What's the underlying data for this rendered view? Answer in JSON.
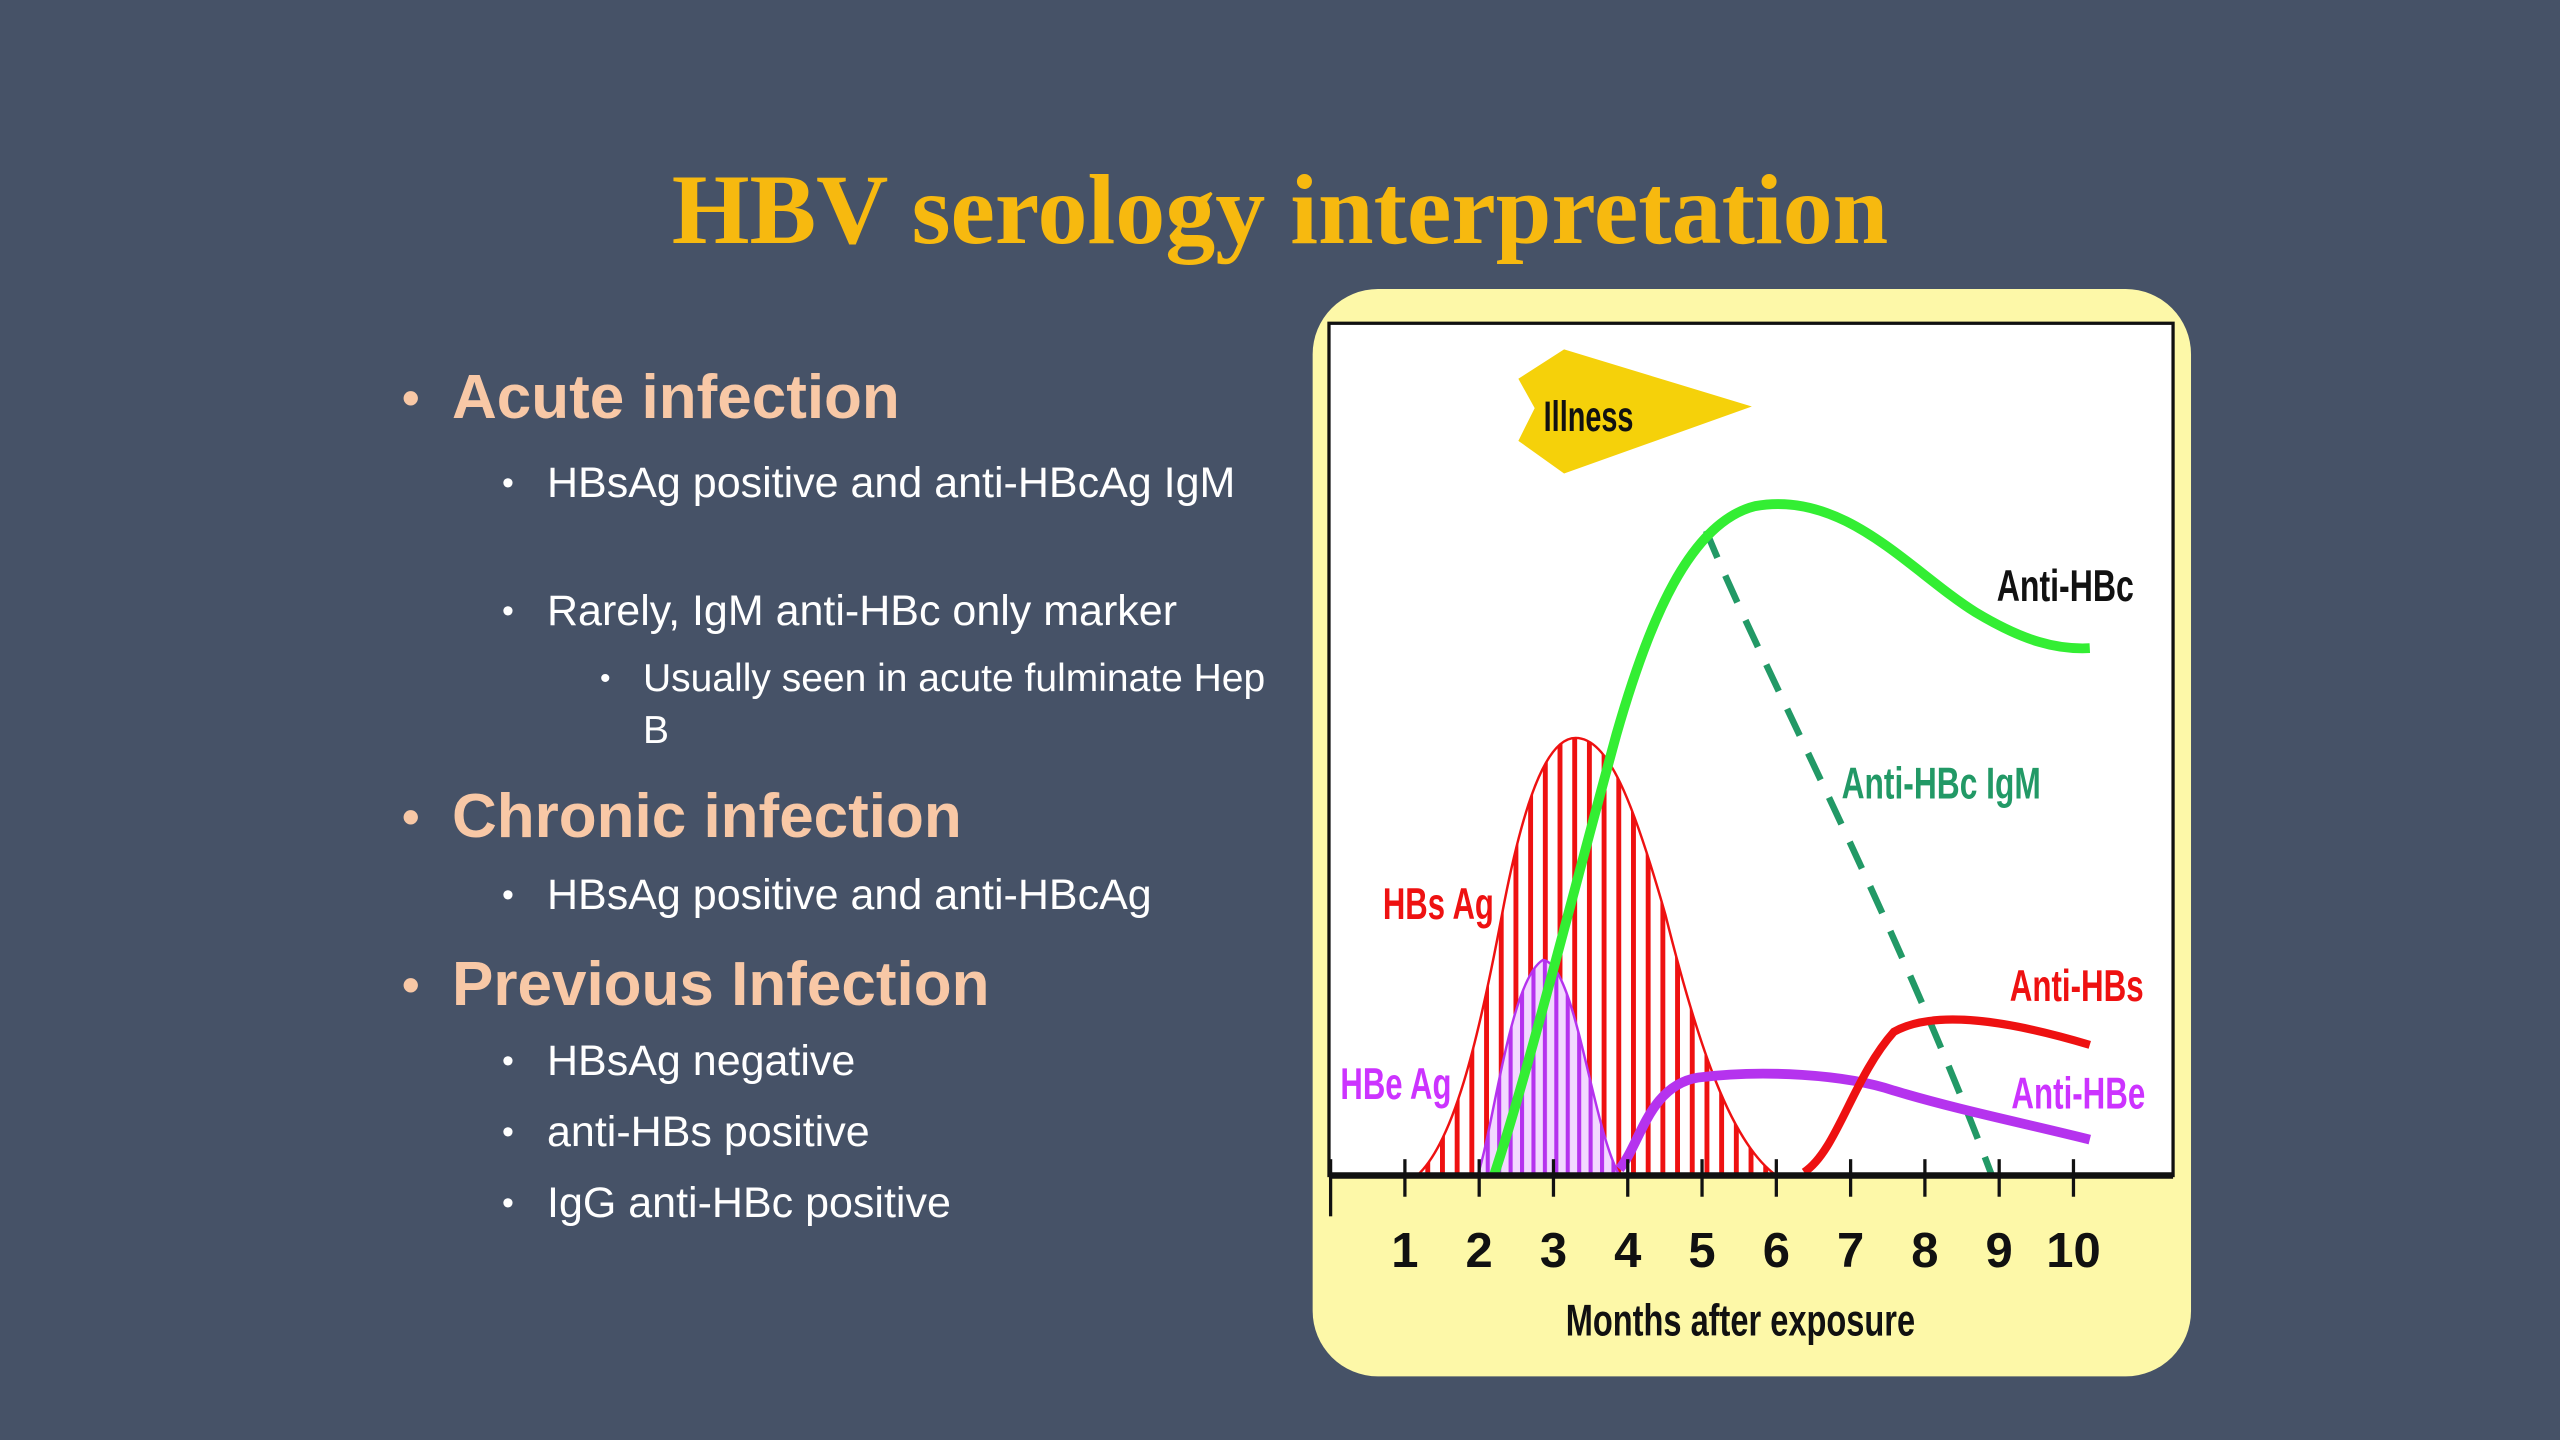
{
  "title": "HBV serology interpretation",
  "sections": [
    {
      "heading": "Acute infection",
      "items": [
        {
          "text": "HBsAg positive and anti-HBcAg IgM",
          "subitems": []
        },
        {
          "text": "Rarely, IgM anti-HBc only marker",
          "subitems": [
            "Usually seen in acute fulminate Hep B"
          ]
        }
      ]
    },
    {
      "heading": "Chronic infection",
      "items": [
        {
          "text": "HBsAg positive and anti-HBcAg",
          "subitems": []
        }
      ]
    },
    {
      "heading": "Previous Infection",
      "items": [
        {
          "text": "HBsAg negative",
          "subitems": []
        },
        {
          "text": "anti-HBs positive",
          "subitems": []
        },
        {
          "text": "IgG anti-HBc positive",
          "subitems": []
        }
      ]
    }
  ],
  "figure": {
    "illness": "Illness",
    "labels": {
      "anti_hbc": "Anti-HBc",
      "anti_hbc_igm": "Anti-HBc IgM",
      "hbs_ag": "HBs Ag",
      "anti_hbs": "Anti-HBs",
      "hbe_ag": "HBe Ag",
      "anti_hbe": "Anti-HBe"
    },
    "xticks": [
      1,
      2,
      3,
      4,
      5,
      6,
      7,
      8,
      9,
      10
    ],
    "xlabel": "Months after exposure"
  }
}
